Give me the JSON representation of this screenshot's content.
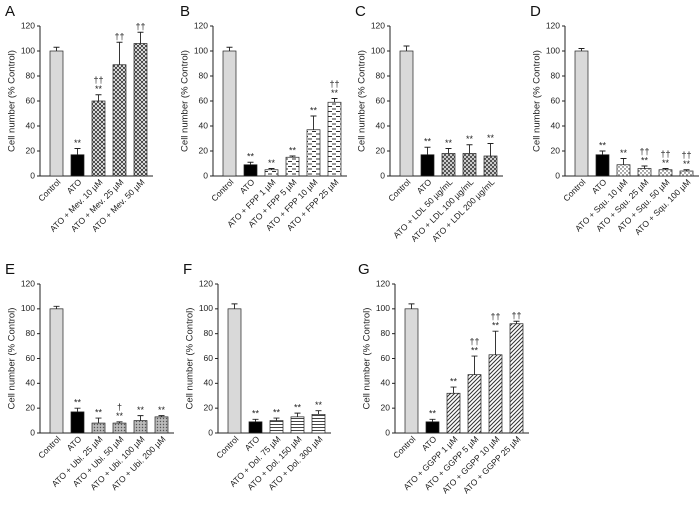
{
  "chart_data": [
    {
      "type": "bar",
      "panel": "A",
      "ylabel": "Cell number (% Control)",
      "categories": [
        "Control",
        "ATO",
        "ATO + Mev. 10 µM",
        "ATO + Mev. 25 µM",
        "ATO + Mev. 50 µM"
      ],
      "values": [
        100,
        17,
        60,
        89,
        106
      ],
      "errors": [
        3,
        5,
        5,
        18,
        9
      ],
      "annotations": [
        null,
        [
          "**"
        ],
        [
          "††",
          "**"
        ],
        [
          "††"
        ],
        [
          "††"
        ]
      ],
      "control_color": "#d9d9d9",
      "ato_color": "#000000",
      "pattern": "crosshatch",
      "ylim": [
        0,
        120
      ],
      "yticks": [
        0,
        20,
        40,
        60,
        80,
        100,
        120
      ]
    },
    {
      "type": "bar",
      "panel": "B",
      "ylabel": "Cell number (% Control)",
      "categories": [
        "Control",
        "ATO",
        "ATO + FPP 1 µM",
        "ATO + FPP 5 µM",
        "ATO + FPP 10 µM",
        "ATO + FPP 25 µM"
      ],
      "values": [
        100,
        9,
        5,
        15,
        37,
        59
      ],
      "errors": [
        3,
        2,
        1,
        1,
        11,
        3
      ],
      "annotations": [
        null,
        [
          "**"
        ],
        [
          "**"
        ],
        [
          "**"
        ],
        [
          "**"
        ],
        [
          "††",
          "**"
        ]
      ],
      "control_color": "#d9d9d9",
      "ato_color": "#000000",
      "pattern": "dashes",
      "ylim": [
        0,
        120
      ],
      "yticks": [
        0,
        20,
        40,
        60,
        80,
        100,
        120
      ]
    },
    {
      "type": "bar",
      "panel": "C",
      "ylabel": "Cell number (% Control)",
      "categories": [
        "Control",
        "ATO",
        "ATO + LDL 50 µg/mL",
        "ATO + LDL 100 µg/mL",
        "ATO + LDL 200 µg/mL"
      ],
      "values": [
        100,
        17,
        18,
        18,
        16
      ],
      "errors": [
        4,
        6,
        4,
        7,
        10
      ],
      "annotations": [
        null,
        [
          "**"
        ],
        [
          "**"
        ],
        [
          "**"
        ],
        [
          "**"
        ]
      ],
      "control_color": "#d9d9d9",
      "ato_color": "#000000",
      "pattern": "checker",
      "ylim": [
        0,
        120
      ],
      "yticks": [
        0,
        20,
        40,
        60,
        80,
        100,
        120
      ]
    },
    {
      "type": "bar",
      "panel": "D",
      "ylabel": "Cell number (% Control)",
      "categories": [
        "Control",
        "ATO",
        "ATO + Squ. 10 µM",
        "ATO + Squ. 25 µM",
        "ATO + Squ. 50 µM",
        "ATO + Squ. 100 µM"
      ],
      "values": [
        100,
        17,
        9,
        6,
        5,
        4
      ],
      "errors": [
        2,
        3,
        5,
        2,
        1,
        1
      ],
      "annotations": [
        null,
        [
          "**"
        ],
        [
          "**"
        ],
        [
          "††",
          "**"
        ],
        [
          "††",
          "**"
        ],
        [
          "††",
          "**"
        ]
      ],
      "control_color": "#d9d9d9",
      "ato_color": "#000000",
      "pattern": "dots",
      "ylim": [
        0,
        120
      ],
      "yticks": [
        0,
        20,
        40,
        60,
        80,
        100,
        120
      ]
    },
    {
      "type": "bar",
      "panel": "E",
      "ylabel": "Cell number (% Control)",
      "categories": [
        "Control",
        "ATO",
        "ATO + Ubi. 25 µM",
        "ATO + Ubi. 50 µM",
        "ATO + Ubi. 100 µM",
        "ATO + Ubi. 200 µM"
      ],
      "values": [
        100,
        17,
        8,
        8,
        10,
        13
      ],
      "errors": [
        2,
        3,
        4,
        1,
        4,
        1
      ],
      "annotations": [
        null,
        [
          "**"
        ],
        [
          "**"
        ],
        [
          "†",
          "**"
        ],
        [
          "**"
        ],
        [
          "**"
        ]
      ],
      "control_color": "#d9d9d9",
      "ato_color": "#000000",
      "pattern": "fine-dots",
      "ylim": [
        0,
        120
      ],
      "yticks": [
        0,
        20,
        40,
        60,
        80,
        100,
        120
      ]
    },
    {
      "type": "bar",
      "panel": "F",
      "ylabel": "Cell number (% Control)",
      "categories": [
        "Control",
        "ATO",
        "ATO + Dol. 75 µM",
        "ATO + Dol. 150 µM",
        "ATO + Dol. 300 µM"
      ],
      "values": [
        100,
        9,
        10,
        13,
        15
      ],
      "errors": [
        4,
        2,
        2,
        3,
        3
      ],
      "annotations": [
        null,
        [
          "**"
        ],
        [
          "**"
        ],
        [
          "**"
        ],
        [
          "**"
        ]
      ],
      "control_color": "#d9d9d9",
      "ato_color": "#000000",
      "pattern": "hlines",
      "ylim": [
        0,
        120
      ],
      "yticks": [
        0,
        20,
        40,
        60,
        80,
        100,
        120
      ]
    },
    {
      "type": "bar",
      "panel": "G",
      "ylabel": "Cell number (% Control)",
      "categories": [
        "Control",
        "ATO",
        "ATO + GGPP 1 µM",
        "ATO + GGPP 5 µM",
        "ATO + GGPP 10 µM",
        "ATO + GGPP 25 µM"
      ],
      "values": [
        100,
        9,
        32,
        47,
        63,
        88
      ],
      "errors": [
        4,
        2,
        5,
        15,
        19,
        2
      ],
      "annotations": [
        null,
        [
          "**"
        ],
        [
          "**"
        ],
        [
          "††",
          "**"
        ],
        [
          "††",
          "**"
        ],
        [
          "††"
        ]
      ],
      "control_color": "#d9d9d9",
      "ato_color": "#000000",
      "pattern": "diagonal",
      "ylim": [
        0,
        120
      ],
      "yticks": [
        0,
        20,
        40,
        60,
        80,
        100,
        120
      ]
    }
  ]
}
